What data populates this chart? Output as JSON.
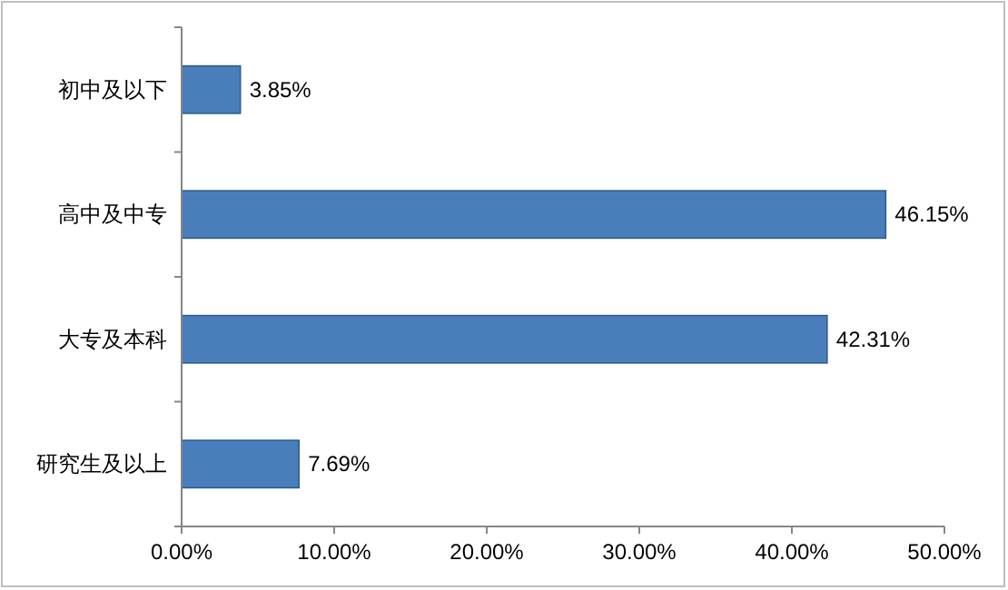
{
  "chart_data": {
    "type": "bar",
    "orientation": "horizontal",
    "categories": [
      "初中及以下",
      "高中及中专",
      "大专及本科",
      "研究生及以上"
    ],
    "values": [
      3.85,
      46.15,
      42.31,
      7.69
    ],
    "value_labels": [
      "3.85%",
      "46.15%",
      "42.31%",
      "7.69%"
    ],
    "color": "#4a7ebb",
    "xlim": [
      0,
      50
    ],
    "xticks": [
      {
        "value": 0,
        "label": "0.00%"
      },
      {
        "value": 10,
        "label": "10.00%"
      },
      {
        "value": 20,
        "label": "20.00%"
      },
      {
        "value": 30,
        "label": "30.00%"
      },
      {
        "value": 40,
        "label": "40.00%"
      },
      {
        "value": 50,
        "label": "50.00%"
      }
    ],
    "grid": false
  }
}
